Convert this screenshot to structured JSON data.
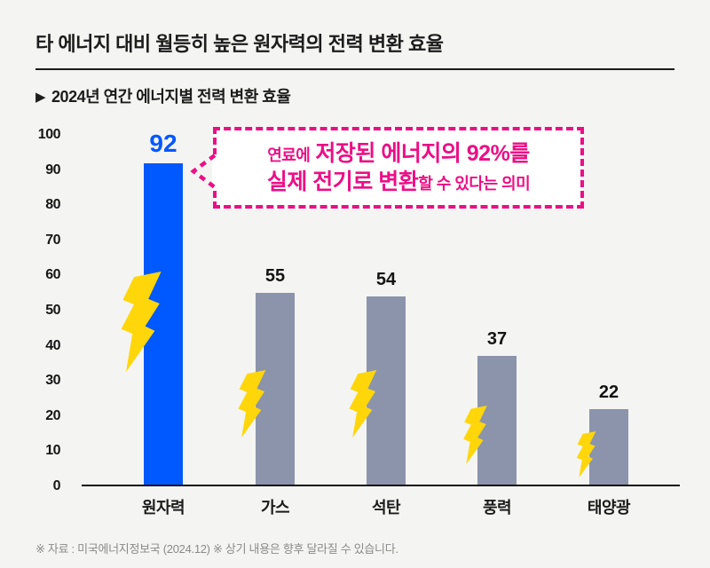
{
  "header": {
    "title": "타 에너지 대비 월등히 높은 원자력의 전력 변환 효율",
    "subtitle_marker": "▶",
    "subtitle": "2024년 연간 에너지별 전력 변환 효율"
  },
  "callout": {
    "line1_small": "연료에",
    "line1_big": "저장된 에너지의 92%를",
    "line2_big": "실제 전기로 변환",
    "line2_small": "할 수 있다는 의미"
  },
  "footnote": "※ 자료 : 미국에너지정보국 (2024.12) ※ 상기 내용은 향후 달라질 수 있습니다.",
  "chart_data": {
    "type": "bar",
    "title": "2024년 연간 에너지별 전력 변환 효율",
    "categories": [
      "원자력",
      "가스",
      "석탄",
      "풍력",
      "태양광"
    ],
    "values": [
      92,
      55,
      54,
      37,
      22
    ],
    "xlabel": "",
    "ylabel": "",
    "ylim": [
      0,
      100
    ],
    "yticks": [
      0,
      10,
      20,
      30,
      40,
      50,
      60,
      70,
      80,
      90,
      100
    ],
    "grid": false,
    "legend": false,
    "highlight_index": 0,
    "bar_colors": {
      "highlight": "#0058ff",
      "default": "#8b94ab"
    },
    "value_label_colors": {
      "highlight": "#0058ff",
      "default": "#141414"
    },
    "bar_icon": "lightning-bolt-icon",
    "annotation": "연료에 저장된 에너지의 92%를 실제 전기로 변환할 수 있다는 의미"
  },
  "colors": {
    "background": "#f4f4f2",
    "accent_pink": "#eb0f86",
    "bolt_yellow": "#ffd60a",
    "bar_blue": "#0058ff",
    "bar_gray": "#8b94ab",
    "text_dark": "#1c1c1c",
    "footnote_gray": "#8a8a8a"
  }
}
